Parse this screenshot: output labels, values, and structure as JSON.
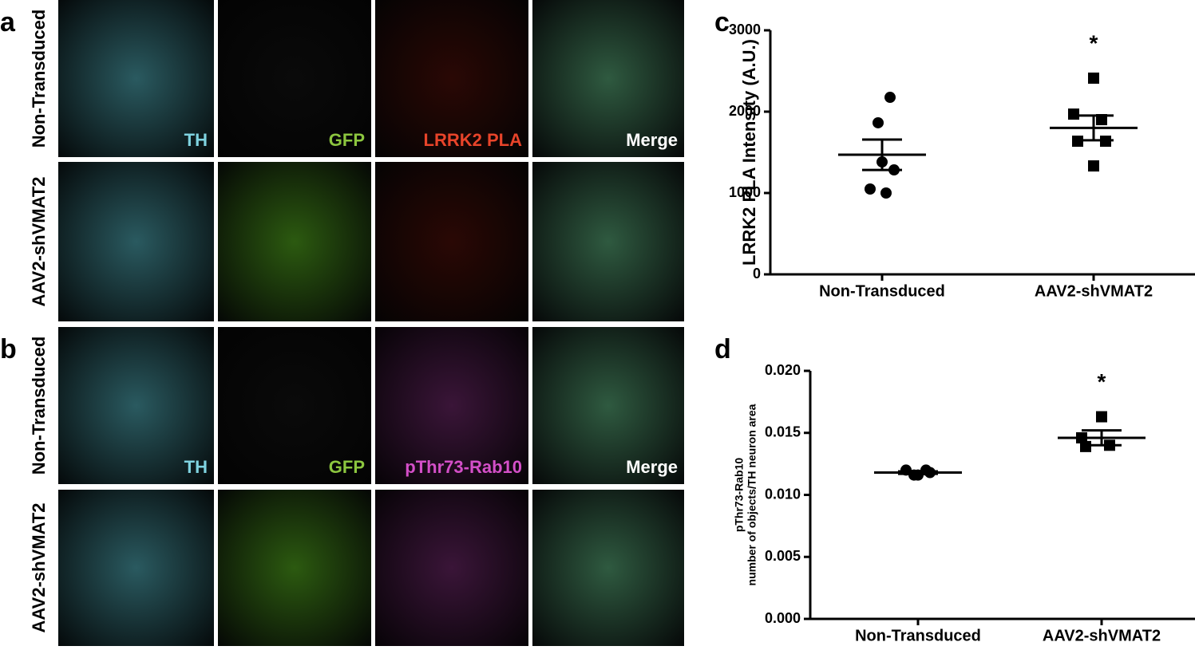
{
  "figure": {
    "panels": [
      "a",
      "b",
      "c",
      "d"
    ],
    "rows": {
      "a": [
        "Non-Transduced",
        "AAV2-shVMAT2"
      ],
      "b": [
        "Non-Transduced",
        "AAV2-shVMAT2"
      ]
    },
    "channels": {
      "a": [
        "TH",
        "GFP",
        "LRRK2 PLA",
        "Merge"
      ],
      "b": [
        "TH",
        "GFP",
        "pThr73-Rab10",
        "Merge"
      ]
    }
  },
  "chart_data": [
    {
      "type": "scatter",
      "ylabel": "LRRK2 PLA Intensity (A.U.)",
      "categories": [
        "Non-Transduced",
        "AAV2-shVMAT2"
      ],
      "ylim": [
        0,
        3000
      ],
      "yticks": [
        0,
        1000,
        2000,
        3000
      ],
      "annotation": "*",
      "series": [
        {
          "name": "Non-Transduced",
          "color": "#000000",
          "marker": "circle",
          "values": [
            2176,
            1863,
            1382,
            1284,
            1049,
            1000
          ],
          "mean": 1470,
          "error": 187
        },
        {
          "name": "AAV2-shVMAT2",
          "color": "#000000",
          "marker": "square",
          "values": [
            2412,
            1970,
            1902,
            1637,
            1637,
            1333
          ],
          "mean": 1800,
          "error": 152
        }
      ]
    },
    {
      "type": "scatter",
      "ylabel": [
        "pThr73-Rab10",
        "number of objects/TH neuron area"
      ],
      "categories": [
        "Non-Transduced",
        "AAV2-shVMAT2"
      ],
      "ylim": [
        0,
        0.02
      ],
      "yticks": [
        {
          "value": 0,
          "label": "0.000"
        },
        {
          "value": 0.005,
          "label": "0.005"
        },
        {
          "value": 0.01,
          "label": "0.010"
        },
        {
          "value": 0.015,
          "label": "0.015"
        },
        {
          "value": 0.02,
          "label": "0.020"
        }
      ],
      "annotation": "*",
      "series": [
        {
          "name": "Non-Transduced",
          "color": "#000000",
          "marker": "circle",
          "values": [
            0.012,
            0.0116,
            0.0116,
            0.0118,
            0.012
          ],
          "mean": 0.0118,
          "error": 0.0001
        },
        {
          "name": "AAV2-shVMAT2",
          "color": "#000000",
          "marker": "square",
          "values": [
            0.0163,
            0.0146,
            0.014,
            0.0139
          ],
          "mean": 0.0146,
          "error": 0.0006
        }
      ]
    }
  ]
}
